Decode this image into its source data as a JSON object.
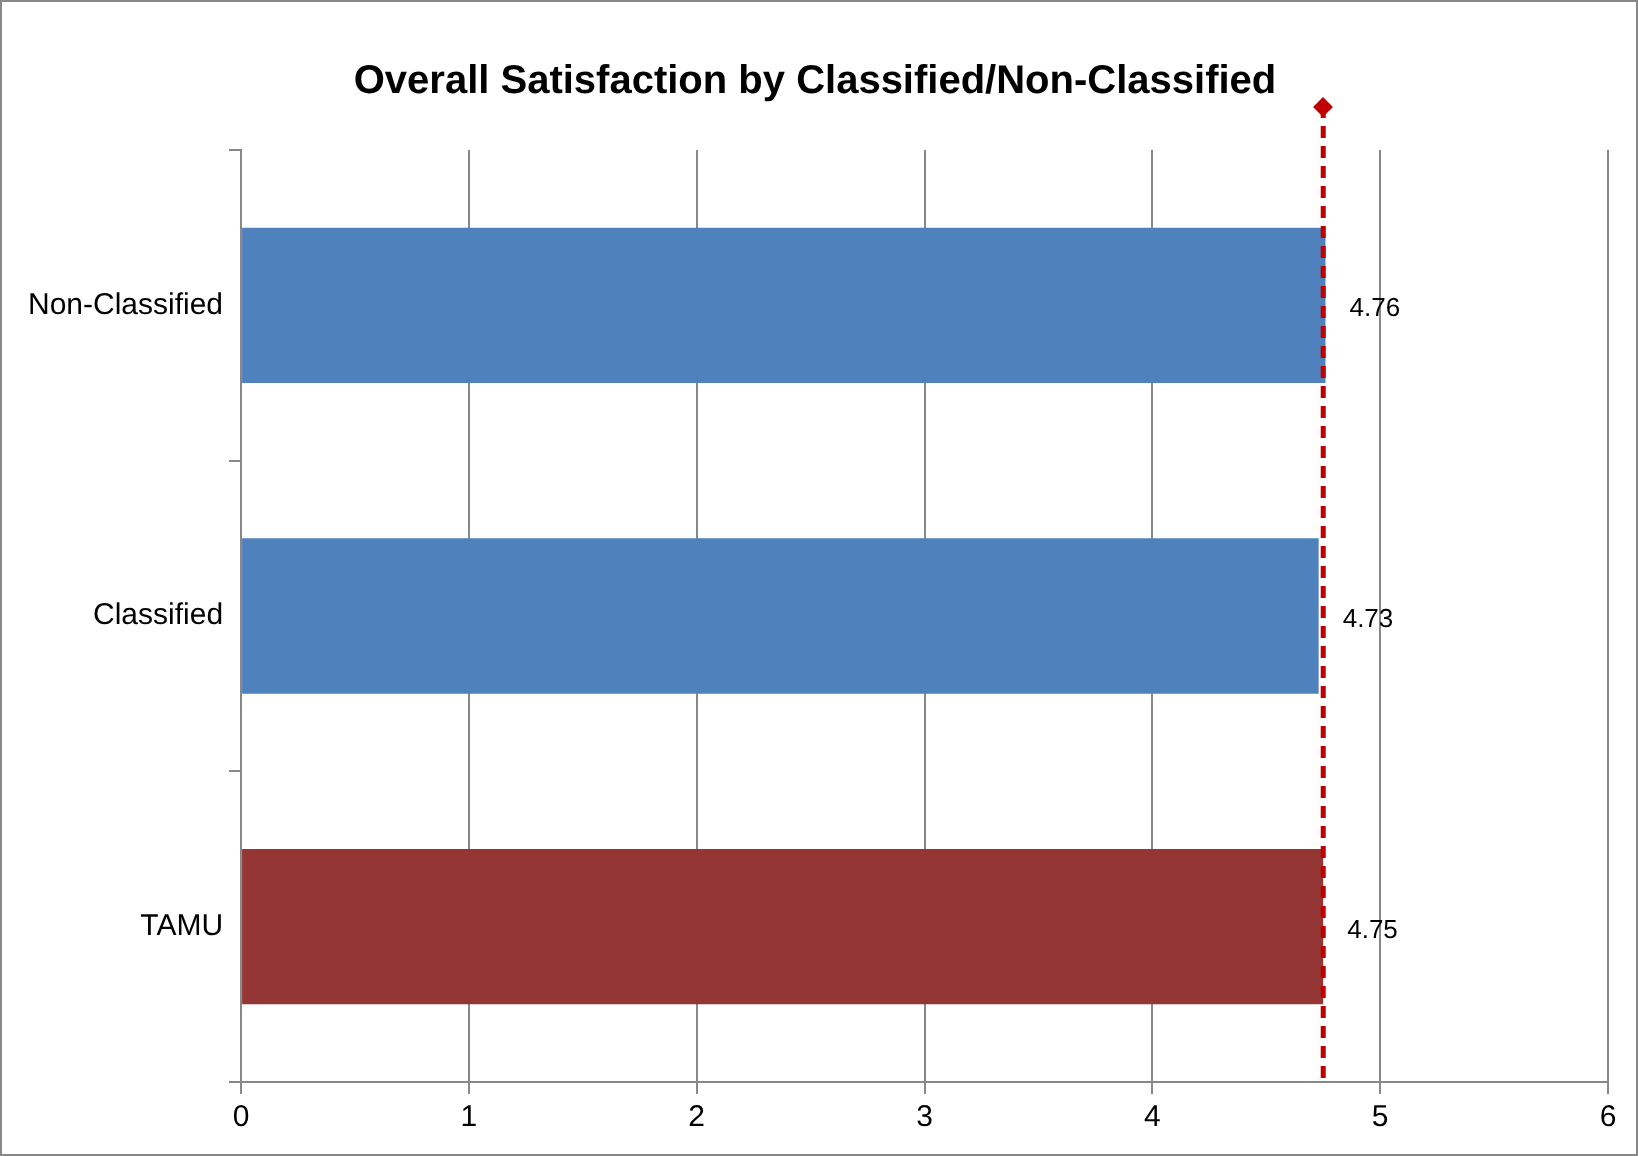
{
  "chart_data": {
    "type": "bar",
    "orientation": "horizontal",
    "title": "Overall Satisfaction by Classified/Non-Classified",
    "categories": [
      "Non-Classified",
      "Classified",
      "TAMU"
    ],
    "values": [
      4.76,
      4.73,
      4.75
    ],
    "colors": [
      "#4f81bd",
      "#4f81bd",
      "#943634"
    ],
    "xlim": [
      0,
      6
    ],
    "xticks": [
      0,
      1,
      2,
      3,
      4,
      5,
      6
    ],
    "grid": "x",
    "legend": false,
    "data_labels": true,
    "ref_lines": [
      {
        "axis": "x",
        "value": 4.75,
        "color": "#c00000",
        "line_style": "dashed"
      }
    ]
  }
}
